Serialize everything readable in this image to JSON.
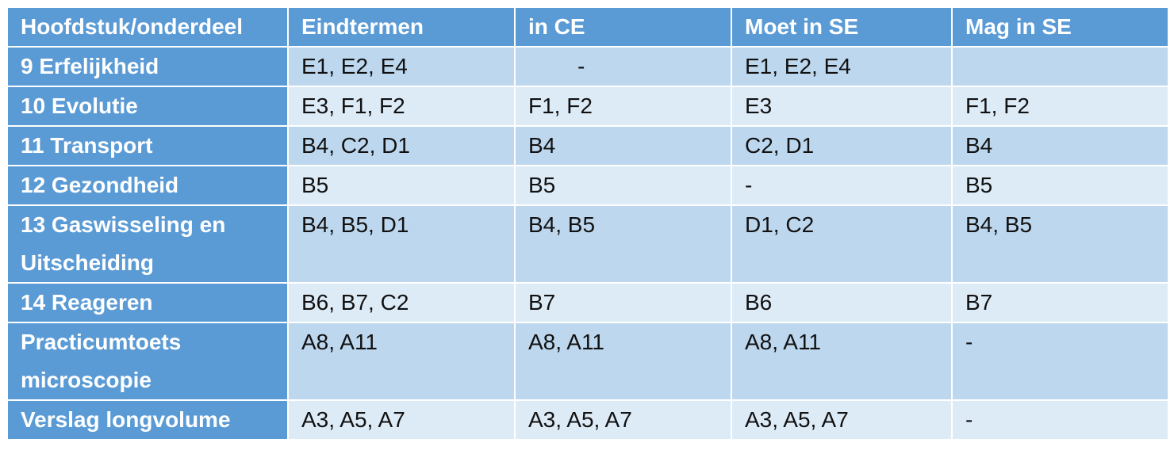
{
  "table": {
    "header": [
      "Hoofdstuk/onderdeel",
      "Eindtermen",
      "in CE",
      "Moet in SE",
      "Mag in SE"
    ],
    "rows": [
      [
        "9 Erfelijkheid",
        "E1, E2, E4",
        "-",
        "E1, E2, E4",
        null
      ],
      [
        "10 Evolutie",
        "E3, F1, F2",
        "F1, F2",
        "E3",
        "F1, F2"
      ],
      [
        "11 Transport",
        "B4, C2, D1",
        "B4",
        "C2, D1",
        "B4"
      ],
      [
        "12 Gezondheid",
        "B5",
        "B5",
        "-",
        "B5"
      ],
      [
        "13 Gaswisseling en Uitscheiding",
        "B4, B5, D1",
        "B4, B5",
        "D1, C2",
        "B4, B5"
      ],
      [
        "14 Reageren",
        "B6, B7, C2",
        "B7",
        "B6",
        "B7"
      ],
      [
        "Practicumtoets microscopie",
        "A8, A11",
        "A8, A11",
        "A8, A11",
        "-"
      ],
      [
        "Verslag longvolume",
        "A3, A5, A7",
        "A3, A5, A7",
        "A3, A5, A7",
        "-"
      ]
    ]
  }
}
